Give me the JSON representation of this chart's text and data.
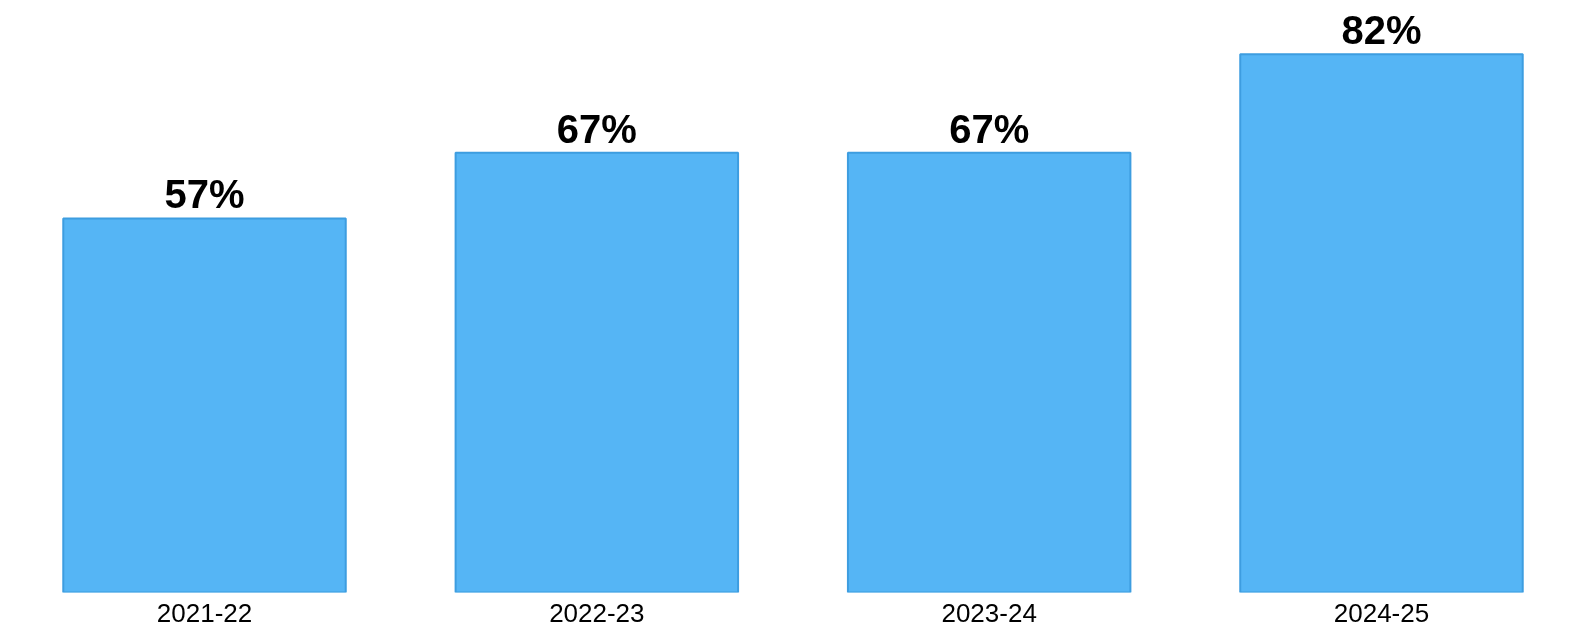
{
  "chart_data": {
    "type": "bar",
    "categories": [
      "2021-22",
      "2022-23",
      "2023-24",
      "2024-25"
    ],
    "values": [
      57,
      67,
      67,
      82
    ],
    "value_labels": [
      "57%",
      "67%",
      "67%",
      "82%"
    ],
    "color": "#55b5f5"
  }
}
